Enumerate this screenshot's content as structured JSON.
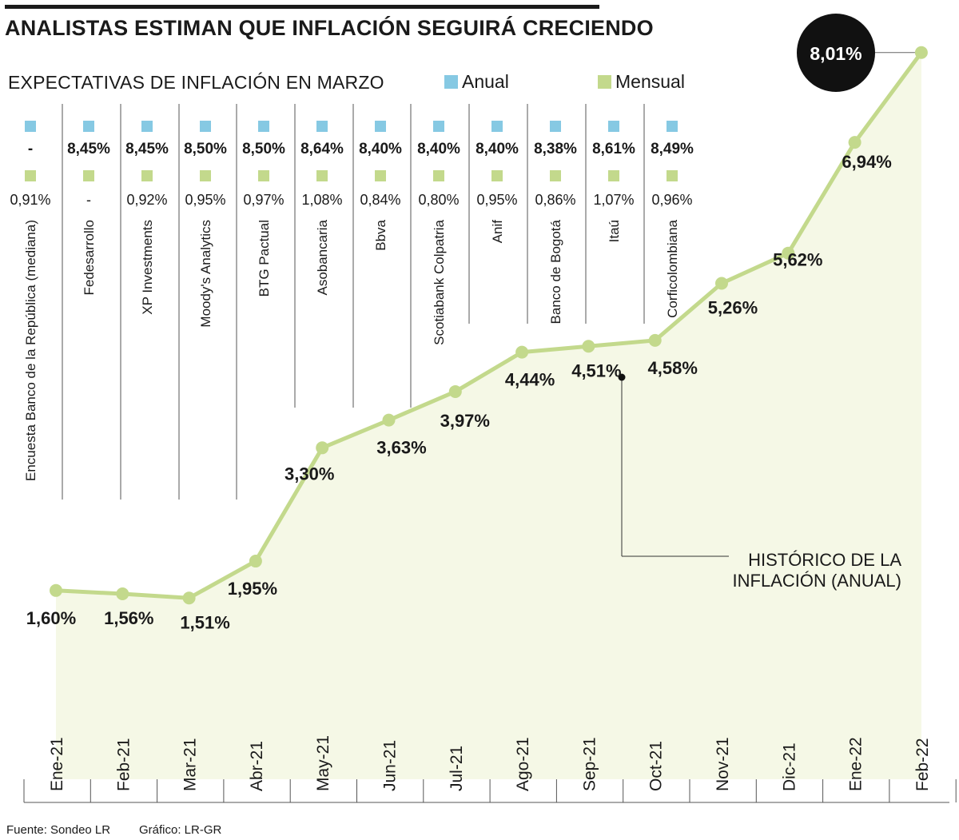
{
  "title": "ANALISTAS ESTIMAN QUE INFLACIÓN SEGUIRÁ CRECIENDO",
  "subtitle": "EXPECTATIVAS DE INFLACIÓN EN MARZO",
  "legend": {
    "anual": {
      "label": "Anual",
      "color": "#86c9e3"
    },
    "mensual": {
      "label": "Mensual",
      "color": "#c3d98c"
    }
  },
  "analysts": [
    {
      "name": "Encuesta Banco de la República (mediana)",
      "anual": "-",
      "mensual": "0,91%"
    },
    {
      "name": "Fedesarrollo",
      "anual": "8,45%",
      "mensual": "-"
    },
    {
      "name": "XP Investments",
      "anual": "8,45%",
      "mensual": "0,92%"
    },
    {
      "name": "Moody's Analytics",
      "anual": "8,50%",
      "mensual": "0,95%"
    },
    {
      "name": "BTG Pactual",
      "anual": "8,50%",
      "mensual": "0,97%"
    },
    {
      "name": "Asobancaria",
      "anual": "8,64%",
      "mensual": "1,08%"
    },
    {
      "name": "Bbva",
      "anual": "8,40%",
      "mensual": "0,84%"
    },
    {
      "name": "Scotiabank Colpatria",
      "anual": "8,40%",
      "mensual": "0,80%"
    },
    {
      "name": "Anif",
      "anual": "8,40%",
      "mensual": "0,95%"
    },
    {
      "name": "Banco de Bogotá",
      "anual": "8,38%",
      "mensual": "0,86%"
    },
    {
      "name": "Itaú",
      "anual": "8,61%",
      "mensual": "1,07%"
    },
    {
      "name": "Corficolombiana",
      "anual": "8,49%",
      "mensual": "0,96%"
    }
  ],
  "annotation": {
    "line1": "HISTÓRICO DE LA",
    "line2": "INFLACIÓN (ANUAL)"
  },
  "chart_data": {
    "type": "line",
    "title": "ANALISTAS ESTIMAN QUE INFLACIÓN SEGUIRÁ CRECIENDO",
    "categories": [
      "Ene-21",
      "Feb-21",
      "Mar-21",
      "Abr-21",
      "May-21",
      "Jun-21",
      "Jul-21",
      "Ago-21",
      "Sep-21",
      "Oct-21",
      "Nov-21",
      "Dic-21",
      "Ene-22",
      "Feb-22"
    ],
    "values": [
      1.6,
      1.56,
      1.51,
      1.95,
      3.3,
      3.63,
      3.97,
      4.44,
      4.51,
      4.58,
      5.26,
      5.62,
      6.94,
      8.01
    ],
    "labels": [
      "1,60%",
      "1,56%",
      "1,51%",
      "1,95%",
      "3,30%",
      "3,63%",
      "3,97%",
      "4,44%",
      "4,51%",
      "4,58%",
      "5,26%",
      "5,62%",
      "6,94%",
      "8,01%"
    ],
    "line_color": "#c3d98c",
    "fill_color": "#f5f8e6",
    "grid": false
  },
  "source": {
    "left": "Fuente: Sondeo LR",
    "right": "Gráfico: LR-GR"
  }
}
